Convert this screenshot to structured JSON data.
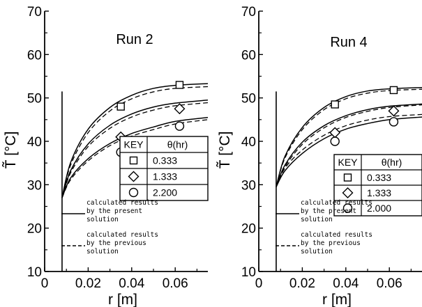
{
  "chart_data": [
    {
      "type": "line",
      "title": "Run 2",
      "xlabel": "r [m]",
      "ylabel": "T̃ [°C]",
      "xlim": [
        0,
        0.075
      ],
      "ylim": [
        10,
        70
      ],
      "x_ticks": [
        "0",
        "0.02",
        "0.04",
        "0.06"
      ],
      "y_ticks": [
        "10",
        "20",
        "30",
        "40",
        "50",
        "60",
        "70"
      ],
      "wall_r": 0.008,
      "series": [
        {
          "style": "solid",
          "points": [
            [
              0.008,
              27.0
            ],
            [
              0.012,
              35.2
            ],
            [
              0.02,
              42.8
            ],
            [
              0.03,
              47.8
            ],
            [
              0.04,
              50.6
            ],
            [
              0.05,
              52.2
            ],
            [
              0.06,
              52.9
            ],
            [
              0.075,
              53.3
            ]
          ]
        },
        {
          "style": "dashed",
          "points": [
            [
              0.008,
              27.0
            ],
            [
              0.012,
              34.6
            ],
            [
              0.02,
              42.0
            ],
            [
              0.03,
              47.0
            ],
            [
              0.04,
              49.8
            ],
            [
              0.05,
              51.4
            ],
            [
              0.06,
              52.2
            ],
            [
              0.075,
              52.6
            ]
          ]
        },
        {
          "style": "solid",
          "points": [
            [
              0.008,
              27.0
            ],
            [
              0.012,
              33.3
            ],
            [
              0.02,
              39.4
            ],
            [
              0.03,
              43.7
            ],
            [
              0.04,
              46.3
            ],
            [
              0.05,
              47.9
            ],
            [
              0.06,
              48.8
            ],
            [
              0.075,
              49.5
            ]
          ]
        },
        {
          "style": "dashed",
          "points": [
            [
              0.008,
              27.0
            ],
            [
              0.012,
              32.8
            ],
            [
              0.02,
              38.8
            ],
            [
              0.03,
              43.0
            ],
            [
              0.04,
              45.6
            ],
            [
              0.05,
              47.2
            ],
            [
              0.06,
              48.2
            ],
            [
              0.075,
              48.9
            ]
          ]
        },
        {
          "style": "solid",
          "points": [
            [
              0.008,
              27.0
            ],
            [
              0.012,
              31.6
            ],
            [
              0.02,
              36.0
            ],
            [
              0.03,
              39.5
            ],
            [
              0.04,
              41.8
            ],
            [
              0.05,
              43.3
            ],
            [
              0.06,
              44.6
            ],
            [
              0.075,
              45.5
            ]
          ]
        },
        {
          "style": "dashed",
          "points": [
            [
              0.008,
              27.0
            ],
            [
              0.012,
              31.2
            ],
            [
              0.02,
              35.5
            ],
            [
              0.03,
              39.0
            ],
            [
              0.04,
              41.2
            ],
            [
              0.05,
              42.7
            ],
            [
              0.06,
              44.0
            ],
            [
              0.075,
              45.0
            ]
          ]
        }
      ],
      "markers": [
        {
          "shape": "square",
          "points": [
            [
              0.035,
              48.0
            ],
            [
              0.062,
              53.0
            ]
          ]
        },
        {
          "shape": "diamond",
          "points": [
            [
              0.035,
              41.0
            ],
            [
              0.062,
              47.5
            ]
          ]
        },
        {
          "shape": "circle",
          "points": [
            [
              0.035,
              37.5
            ],
            [
              0.062,
              43.5
            ]
          ]
        }
      ],
      "key": {
        "header": [
          "KEY",
          "θ(hr)"
        ],
        "rows": [
          {
            "shape": "square",
            "value": "0.333"
          },
          {
            "shape": "diamond",
            "value": "1.333"
          },
          {
            "shape": "circle",
            "value": "2.200"
          }
        ]
      },
      "legend": {
        "solid": [
          "calculated results",
          "by the present",
          "solution"
        ],
        "dashed": [
          "calculated results",
          "by the previous",
          "solution"
        ]
      }
    },
    {
      "type": "line",
      "title": "Run 4",
      "xlabel": "r [m]",
      "ylabel": "T̃ [°C]",
      "xlim": [
        0,
        0.075
      ],
      "ylim": [
        10,
        70
      ],
      "x_ticks": [
        "0",
        "0.02",
        "0.04",
        "0.06"
      ],
      "y_ticks": [
        "10",
        "20",
        "30",
        "40",
        "50",
        "60",
        "70"
      ],
      "wall_r": 0.008,
      "series": [
        {
          "style": "solid",
          "points": [
            [
              0.008,
              29.5
            ],
            [
              0.012,
              36.5
            ],
            [
              0.02,
              43.2
            ],
            [
              0.03,
              47.8
            ],
            [
              0.04,
              50.3
            ],
            [
              0.05,
              51.6
            ],
            [
              0.06,
              52.1
            ],
            [
              0.075,
              52.4
            ]
          ]
        },
        {
          "style": "dashed",
          "points": [
            [
              0.008,
              29.5
            ],
            [
              0.012,
              36.1
            ],
            [
              0.02,
              42.7
            ],
            [
              0.03,
              47.3
            ],
            [
              0.04,
              49.8
            ],
            [
              0.05,
              51.1
            ],
            [
              0.06,
              51.7
            ],
            [
              0.075,
              52.0
            ]
          ]
        },
        {
          "style": "solid",
          "points": [
            [
              0.008,
              29.5
            ],
            [
              0.012,
              34.5
            ],
            [
              0.02,
              39.8
            ],
            [
              0.03,
              43.6
            ],
            [
              0.04,
              45.9
            ],
            [
              0.05,
              47.3
            ],
            [
              0.06,
              48.1
            ],
            [
              0.075,
              48.6
            ]
          ]
        },
        {
          "style": "dashed",
          "points": [
            [
              0.008,
              29.5
            ],
            [
              0.012,
              34.1
            ],
            [
              0.02,
              39.3
            ],
            [
              0.03,
              43.1
            ],
            [
              0.04,
              45.5
            ],
            [
              0.05,
              46.9
            ],
            [
              0.06,
              47.8
            ],
            [
              0.075,
              48.4
            ]
          ]
        },
        {
          "style": "solid",
          "points": [
            [
              0.008,
              29.5
            ],
            [
              0.012,
              33.2
            ],
            [
              0.02,
              37.2
            ],
            [
              0.03,
              40.6
            ],
            [
              0.04,
              42.8
            ],
            [
              0.05,
              44.1
            ],
            [
              0.06,
              45.0
            ],
            [
              0.075,
              45.6
            ]
          ]
        },
        {
          "style": "dashed",
          "points": [
            [
              0.008,
              29.5
            ],
            [
              0.012,
              33.8
            ],
            [
              0.02,
              38.0
            ],
            [
              0.03,
              41.4
            ],
            [
              0.04,
              43.6
            ],
            [
              0.05,
              44.9
            ],
            [
              0.06,
              45.7
            ],
            [
              0.075,
              46.2
            ]
          ]
        }
      ],
      "markers": [
        {
          "shape": "square",
          "points": [
            [
              0.035,
              48.5
            ],
            [
              0.062,
              51.8
            ]
          ]
        },
        {
          "shape": "diamond",
          "points": [
            [
              0.035,
              42.0
            ],
            [
              0.062,
              47.0
            ]
          ]
        },
        {
          "shape": "circle",
          "points": [
            [
              0.035,
              40.0
            ],
            [
              0.062,
              44.5
            ]
          ]
        }
      ],
      "key": {
        "header": [
          "KEY",
          "θ(hr)"
        ],
        "rows": [
          {
            "shape": "square",
            "value": "0.333"
          },
          {
            "shape": "diamond",
            "value": "1.333"
          },
          {
            "shape": "circle",
            "value": "2.000"
          }
        ]
      },
      "legend": {
        "solid": [
          "calculated results",
          "by the present",
          "solution"
        ],
        "dashed": [
          "calculated results",
          "by the previous",
          "solution"
        ]
      }
    }
  ]
}
